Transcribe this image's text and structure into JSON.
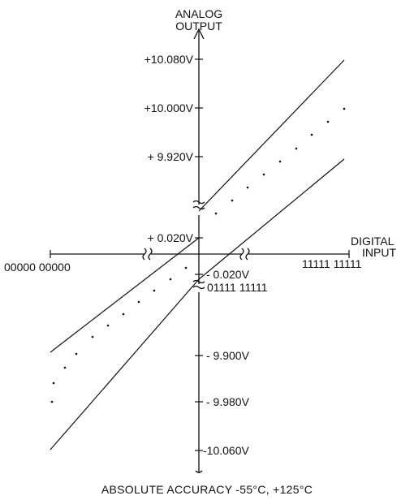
{
  "diagram": {
    "y_axis_title_line1": "ANALOG",
    "y_axis_title_line2": "OUTPUT",
    "x_axis_title_line1": "DIGITAL",
    "x_axis_title_line2": "INPUT",
    "upper_ticks": [
      "+10.080V",
      "+10.000V",
      "+ 9.920V"
    ],
    "plus_zero_label": "+ 0.020V",
    "minus_zero_label": "- 0.020V",
    "mid_code_label": "01111 11111",
    "lower_ticks": [
      "- 9.900V",
      "- 9.980V",
      "-10.060V"
    ],
    "left_code": "00000 00000",
    "right_code": "11111 11111",
    "caption": "ABSOLUTE ACCURACY -55°C, +125°C"
  }
}
